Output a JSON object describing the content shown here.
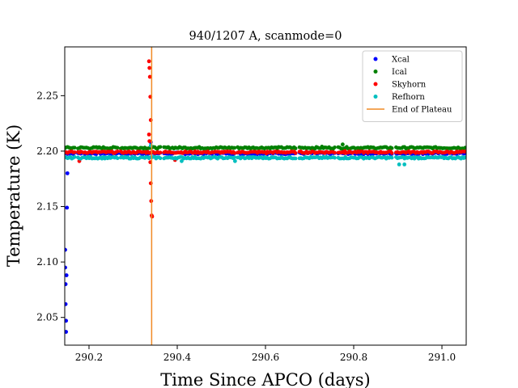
{
  "chart_data": {
    "type": "scatter",
    "title": "940/1207 A, scanmode=0",
    "xlabel": "Time Since APCO (days)",
    "ylabel": "Temperature (K)",
    "xlim": [
      290.145,
      291.055
    ],
    "ylim": [
      2.025,
      2.294
    ],
    "x_ticks": [
      290.2,
      290.4,
      290.6,
      290.8,
      291.0
    ],
    "x_tick_labels": [
      "290.2",
      "290.4",
      "290.6",
      "290.8",
      "291.0"
    ],
    "y_ticks": [
      2.05,
      2.1,
      2.15,
      2.2,
      2.25
    ],
    "y_tick_labels": [
      "2.05",
      "2.10",
      "2.15",
      "2.20",
      "2.25"
    ],
    "grid": false,
    "legend_position": "top-right",
    "segments": [
      [
        290.145,
        290.168
      ],
      [
        290.175,
        290.265
      ],
      [
        290.272,
        290.362
      ],
      [
        290.37,
        290.53
      ],
      [
        290.537,
        290.67
      ],
      [
        290.677,
        290.757
      ],
      [
        290.765,
        290.888
      ],
      [
        290.896,
        291.055
      ]
    ],
    "series": [
      {
        "name": "Xcal",
        "marker": "dot",
        "color": "#0000ff",
        "baseline": 2.198,
        "outliers": [
          [
            290.146,
            2.111
          ],
          [
            290.146,
            2.095
          ],
          [
            290.147,
            2.08
          ],
          [
            290.147,
            2.062
          ],
          [
            290.148,
            2.047
          ],
          [
            290.148,
            2.037
          ],
          [
            290.149,
            2.088
          ],
          [
            290.15,
            2.149
          ],
          [
            290.151,
            2.18
          ],
          [
            290.34,
            2.208
          ]
        ]
      },
      {
        "name": "Ical",
        "marker": "dot",
        "color": "#008000",
        "baseline": 2.203,
        "outliers": [
          [
            290.775,
            2.206
          ],
          [
            290.728,
            2.204
          ]
        ]
      },
      {
        "name": "Skyhorn",
        "marker": "dot",
        "color": "#ff0000",
        "baseline": 2.199,
        "outliers": [
          [
            290.336,
            2.281
          ],
          [
            290.337,
            2.275
          ],
          [
            290.338,
            2.267
          ],
          [
            290.339,
            2.249
          ],
          [
            290.34,
            2.228
          ],
          [
            290.336,
            2.215
          ],
          [
            290.337,
            2.209
          ],
          [
            290.339,
            2.19
          ],
          [
            290.34,
            2.171
          ],
          [
            290.341,
            2.155
          ],
          [
            290.342,
            2.142
          ],
          [
            290.343,
            2.141
          ],
          [
            290.178,
            2.191
          ],
          [
            290.395,
            2.192
          ],
          [
            290.602,
            2.198
          ],
          [
            290.78,
            2.2
          ]
        ]
      },
      {
        "name": "Refhorn",
        "marker": "dot",
        "color": "#00bfbf",
        "baseline": 2.194,
        "outliers": [
          [
            290.531,
            2.191
          ],
          [
            290.41,
            2.191
          ],
          [
            290.903,
            2.188
          ],
          [
            290.915,
            2.188
          ],
          [
            290.34,
            2.205
          ]
        ]
      },
      {
        "name": "End of Plateau",
        "marker": "line",
        "color": "#f08a24",
        "x": 290.342
      }
    ]
  }
}
